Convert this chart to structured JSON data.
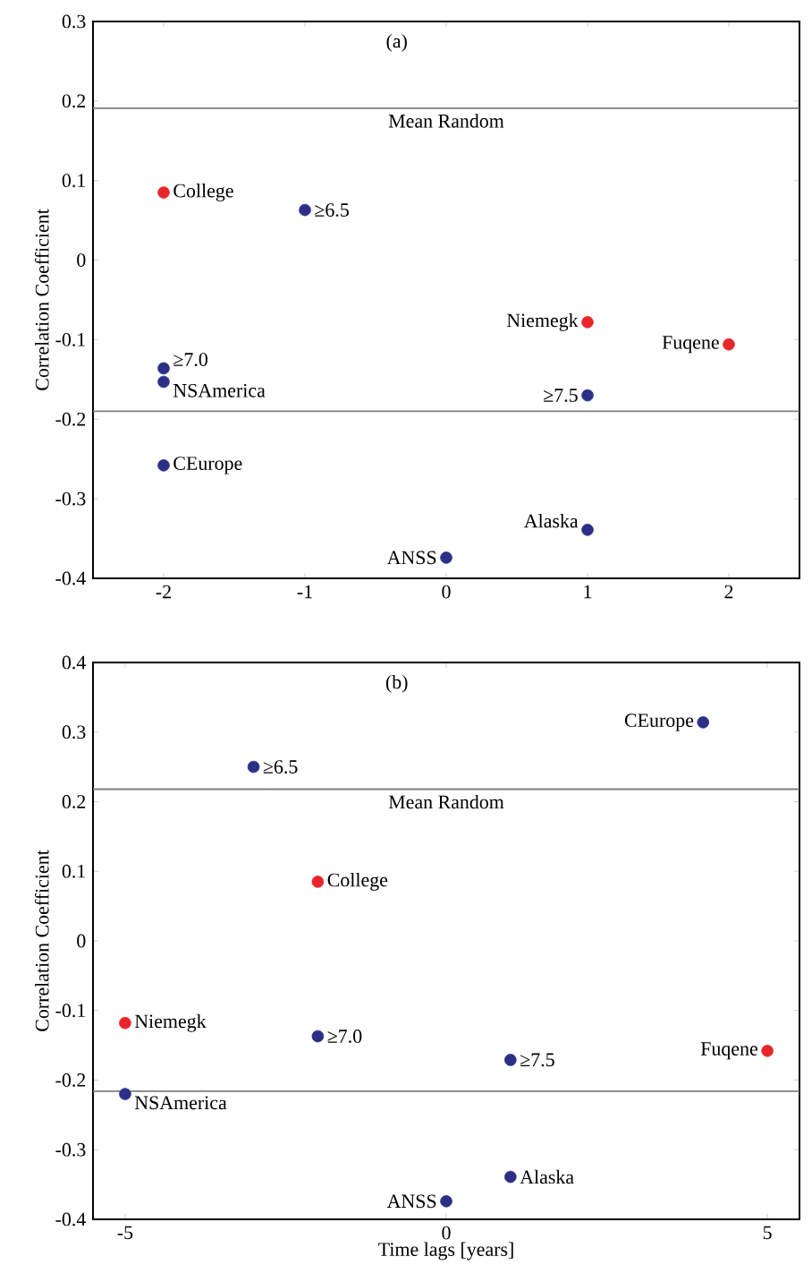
{
  "chart_data": [
    {
      "type": "scatter",
      "title": "(a)",
      "ylabel": "Correlation Coefficient",
      "marker": "circle",
      "grid": false,
      "xlim": [
        -2.5,
        2.5
      ],
      "ylim": [
        -0.4,
        0.3
      ],
      "xticks": [
        -2,
        -1,
        0,
        1,
        2
      ],
      "yticks": [
        -0.4,
        -0.3,
        -0.2,
        -0.1,
        0,
        0.1,
        0.2,
        0.3
      ],
      "series": [
        {
          "color": "#e8262a",
          "x": [
            -2,
            1,
            2
          ],
          "values": [
            0.085,
            -0.078,
            -0.106
          ]
        },
        {
          "color": "#2b2f86",
          "x": [
            -1,
            -2,
            -2,
            -2,
            1,
            1,
            0
          ],
          "values": [
            0.063,
            -0.136,
            -0.153,
            -0.258,
            -0.17,
            -0.339,
            -0.374
          ]
        }
      ],
      "ref_lines": [
        {
          "axis": "y",
          "value": 0.191,
          "label": "Mean Random",
          "color": "#7f7f7f"
        },
        {
          "axis": "y",
          "value": -0.19,
          "color": "#7f7f7f"
        }
      ],
      "annotations": [
        {
          "text": "College",
          "x": -2,
          "y": 0.085
        },
        {
          "text": "Niemegk",
          "x": 1,
          "y": -0.078
        },
        {
          "text": "Fuqene",
          "x": 2,
          "y": -0.106
        },
        {
          "text": "≥6.5",
          "x": -1,
          "y": 0.063
        },
        {
          "text": "≥7.0",
          "x": -2,
          "y": -0.136
        },
        {
          "text": "NSAmerica",
          "x": -2,
          "y": -0.153
        },
        {
          "text": "CEurope",
          "x": -2,
          "y": -0.258
        },
        {
          "text": "≥7.5",
          "x": 1,
          "y": -0.17
        },
        {
          "text": "Alaska",
          "x": 1,
          "y": -0.339
        },
        {
          "text": "ANSS",
          "x": 0,
          "y": -0.374
        }
      ]
    },
    {
      "type": "scatter",
      "title": "(b)",
      "xlabel": "Time lags [years]",
      "ylabel": "Correlation Coefficient",
      "marker": "circle",
      "grid": false,
      "xlim": [
        -5.5,
        5.5
      ],
      "ylim": [
        -0.4,
        0.4
      ],
      "xticks": [
        -5,
        0,
        5
      ],
      "yticks": [
        -0.4,
        -0.3,
        -0.2,
        -0.1,
        0,
        0.1,
        0.2,
        0.3,
        0.4
      ],
      "series": [
        {
          "color": "#e8262a",
          "x": [
            -2,
            -5,
            5
          ],
          "values": [
            0.085,
            -0.118,
            -0.158
          ]
        },
        {
          "color": "#2b2f86",
          "x": [
            -3,
            4,
            -2,
            1,
            -5,
            1,
            0
          ],
          "values": [
            0.25,
            0.314,
            -0.137,
            -0.171,
            -0.22,
            -0.339,
            -0.374
          ]
        }
      ],
      "ref_lines": [
        {
          "axis": "y",
          "value": 0.218,
          "label": "Mean Random",
          "color": "#7f7f7f"
        },
        {
          "axis": "y",
          "value": -0.216,
          "color": "#7f7f7f"
        }
      ],
      "annotations": [
        {
          "text": "College",
          "x": -2,
          "y": 0.085
        },
        {
          "text": "Niemegk",
          "x": -5,
          "y": -0.118
        },
        {
          "text": "Fuqene",
          "x": 5,
          "y": -0.158
        },
        {
          "text": "≥6.5",
          "x": -3,
          "y": 0.25
        },
        {
          "text": "CEurope",
          "x": 4,
          "y": 0.314
        },
        {
          "text": "≥7.0",
          "x": -2,
          "y": -0.137
        },
        {
          "text": "≥7.5",
          "x": 1,
          "y": -0.171
        },
        {
          "text": "NSAmerica",
          "x": -5,
          "y": -0.22
        },
        {
          "text": "Alaska",
          "x": 1,
          "y": -0.339
        },
        {
          "text": "ANSS",
          "x": 0,
          "y": -0.374
        }
      ]
    }
  ]
}
